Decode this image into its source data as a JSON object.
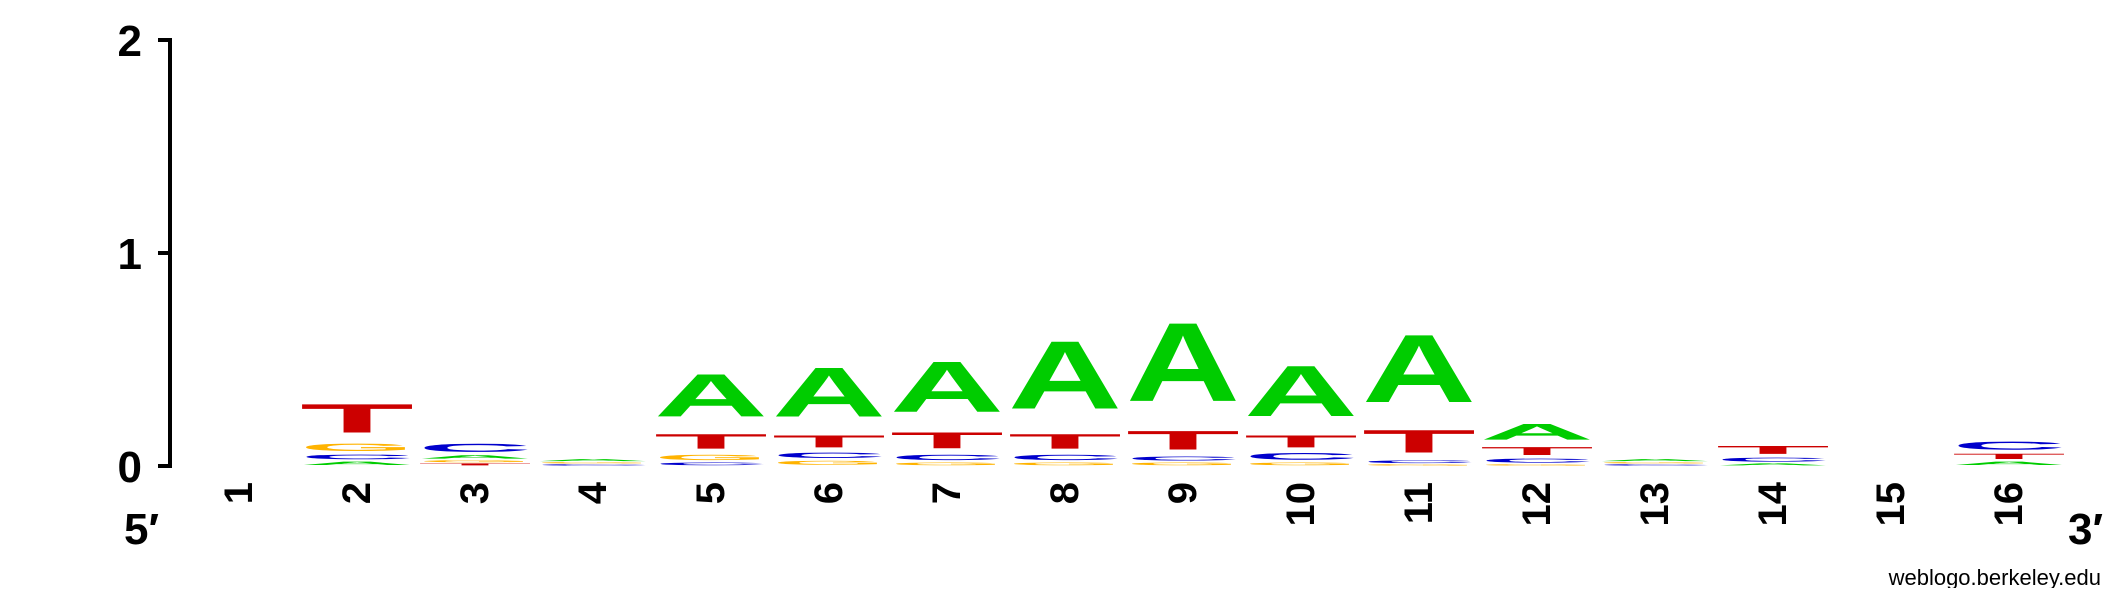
{
  "chart_data": {
    "type": "sequence_logo",
    "y_axis": {
      "ticks": [
        "0",
        "1",
        "2"
      ],
      "ylim": [
        0,
        2
      ],
      "ylabel": ""
    },
    "x_axis": {
      "end_left": "5′",
      "end_right": "3′"
    },
    "colors": {
      "A": "#00cc00",
      "C": "#0000cc",
      "G": "#ffb300",
      "T": "#cc0000"
    },
    "positions": [
      {
        "label": "1",
        "stack": []
      },
      {
        "label": "2",
        "stack": [
          [
            "A",
            0.025
          ],
          [
            "C",
            0.035
          ],
          [
            "G",
            0.055
          ],
          [
            "T",
            0.215
          ]
        ]
      },
      {
        "label": "3",
        "stack": [
          [
            "T",
            0.015
          ],
          [
            "G",
            0.015
          ],
          [
            "A",
            0.025
          ],
          [
            "C",
            0.06
          ]
        ]
      },
      {
        "label": "4",
        "stack": [
          [
            "C",
            0.01
          ],
          [
            "G",
            0.01
          ],
          [
            "A",
            0.015
          ]
        ]
      },
      {
        "label": "5",
        "stack": [
          [
            "C",
            0.02
          ],
          [
            "G",
            0.04
          ],
          [
            "T",
            0.11
          ],
          [
            "A",
            0.32
          ]
        ]
      },
      {
        "label": "6",
        "stack": [
          [
            "G",
            0.03
          ],
          [
            "C",
            0.04
          ],
          [
            "T",
            0.09
          ],
          [
            "A",
            0.37
          ]
        ]
      },
      {
        "label": "7",
        "stack": [
          [
            "G",
            0.02
          ],
          [
            "C",
            0.04
          ],
          [
            "T",
            0.12
          ],
          [
            "A",
            0.38
          ]
        ]
      },
      {
        "label": "8",
        "stack": [
          [
            "G",
            0.02
          ],
          [
            "C",
            0.04
          ],
          [
            "T",
            0.11
          ],
          [
            "A",
            0.51
          ]
        ]
      },
      {
        "label": "9",
        "stack": [
          [
            "G",
            0.02
          ],
          [
            "C",
            0.03
          ],
          [
            "T",
            0.14
          ],
          [
            "A",
            0.59
          ]
        ]
      },
      {
        "label": "10",
        "stack": [
          [
            "G",
            0.02
          ],
          [
            "C",
            0.05
          ],
          [
            "T",
            0.09
          ],
          [
            "A",
            0.38
          ]
        ]
      },
      {
        "label": "11",
        "stack": [
          [
            "G",
            0.01
          ],
          [
            "C",
            0.02
          ],
          [
            "T",
            0.17
          ],
          [
            "A",
            0.51
          ]
        ]
      },
      {
        "label": "12",
        "stack": [
          [
            "G",
            0.01
          ],
          [
            "C",
            0.03
          ],
          [
            "T",
            0.06
          ],
          [
            "A",
            0.12
          ]
        ]
      },
      {
        "label": "13",
        "stack": [
          [
            "C",
            0.01
          ],
          [
            "G",
            0.01
          ],
          [
            "A",
            0.015
          ]
        ]
      },
      {
        "label": "14",
        "stack": [
          [
            "A",
            0.015
          ],
          [
            "C",
            0.03
          ],
          [
            "T",
            0.06
          ]
        ]
      },
      {
        "label": "15",
        "stack": []
      },
      {
        "label": "16",
        "stack": [
          [
            "A",
            0.025
          ],
          [
            "T",
            0.04
          ],
          [
            "C",
            0.06
          ]
        ]
      }
    ]
  },
  "credit": "weblogo.berkeley.edu"
}
